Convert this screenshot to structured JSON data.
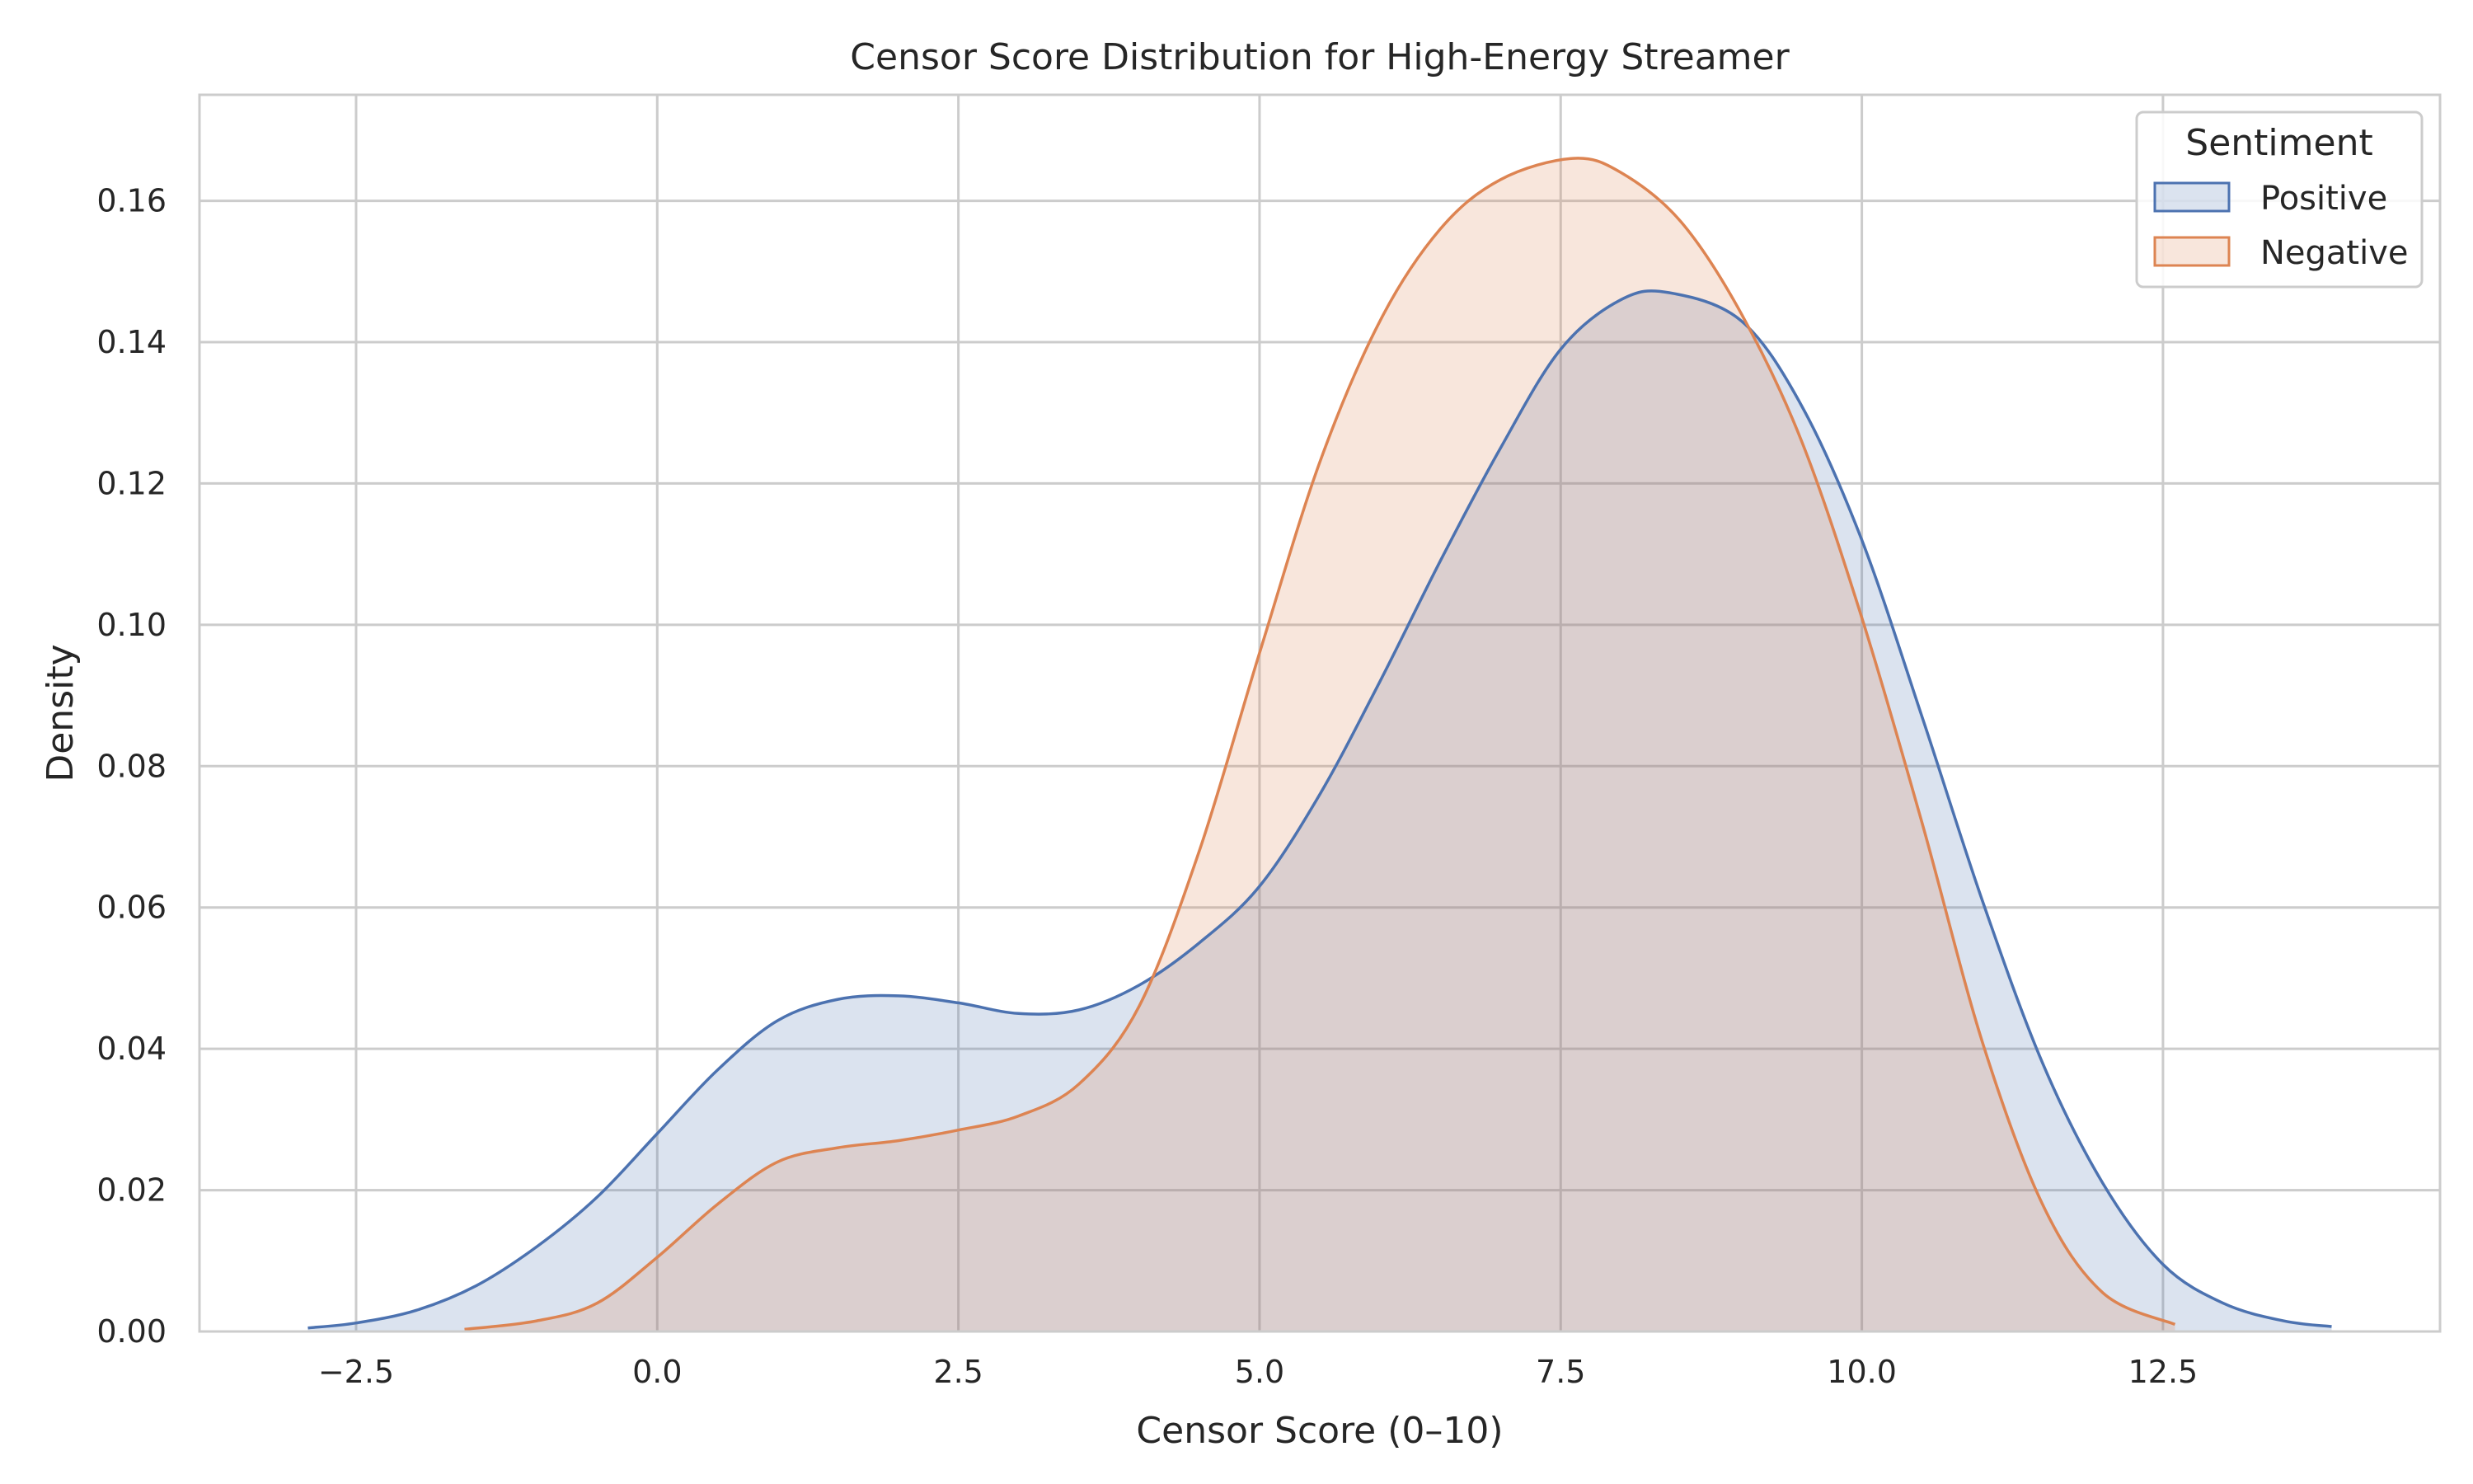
{
  "chart_data": {
    "type": "area",
    "title": "Censor Score Distribution for High-Energy Streamer",
    "xlabel": "Censor Score (0–10)",
    "ylabel": "Density",
    "xlim": [
      -3.8,
      14.8
    ],
    "ylim": [
      0,
      0.175
    ],
    "xticks": [
      -2.5,
      0.0,
      2.5,
      5.0,
      7.5,
      10.0,
      12.5
    ],
    "xtick_labels": [
      "−2.5",
      "0.0",
      "2.5",
      "5.0",
      "7.5",
      "10.0",
      "12.5"
    ],
    "yticks": [
      0.0,
      0.02,
      0.04,
      0.06,
      0.08,
      0.1,
      0.12,
      0.14,
      0.16
    ],
    "ytick_labels": [
      "0.00",
      "0.02",
      "0.04",
      "0.06",
      "0.08",
      "0.10",
      "0.12",
      "0.14",
      "0.16"
    ],
    "grid": true,
    "legend": {
      "title": "Sentiment",
      "placement": "top-right"
    },
    "series": [
      {
        "name": "Positive",
        "color": "#4c72b0",
        "x": [
          -2.9,
          -2.5,
          -2.0,
          -1.5,
          -1.0,
          -0.5,
          0.0,
          0.5,
          1.0,
          1.5,
          2.0,
          2.5,
          3.0,
          3.5,
          4.0,
          4.5,
          5.0,
          5.5,
          6.0,
          6.5,
          7.0,
          7.5,
          8.0,
          8.4,
          9.0,
          9.5,
          10.0,
          10.5,
          11.0,
          11.5,
          12.0,
          12.5,
          13.0,
          13.5,
          13.9
        ],
        "y": [
          0.0005,
          0.0012,
          0.003,
          0.0065,
          0.012,
          0.019,
          0.028,
          0.037,
          0.044,
          0.047,
          0.0475,
          0.0465,
          0.045,
          0.0455,
          0.049,
          0.055,
          0.063,
          0.076,
          0.092,
          0.109,
          0.125,
          0.139,
          0.146,
          0.147,
          0.143,
          0.131,
          0.112,
          0.087,
          0.061,
          0.038,
          0.021,
          0.0095,
          0.004,
          0.0015,
          0.0007
        ]
      },
      {
        "name": "Negative",
        "color": "#dd8452",
        "x": [
          -1.6,
          -1.0,
          -0.5,
          0.0,
          0.5,
          1.0,
          1.5,
          2.0,
          2.5,
          3.0,
          3.5,
          4.0,
          4.5,
          5.0,
          5.5,
          6.0,
          6.5,
          7.0,
          7.6,
          8.0,
          8.5,
          9.0,
          9.5,
          10.0,
          10.5,
          11.0,
          11.5,
          12.0,
          12.6
        ],
        "y": [
          0.0003,
          0.0015,
          0.004,
          0.0105,
          0.018,
          0.024,
          0.026,
          0.027,
          0.0285,
          0.0305,
          0.035,
          0.046,
          0.068,
          0.096,
          0.123,
          0.143,
          0.156,
          0.163,
          0.166,
          0.164,
          0.157,
          0.144,
          0.126,
          0.101,
          0.072,
          0.041,
          0.018,
          0.0055,
          0.001
        ]
      }
    ]
  }
}
